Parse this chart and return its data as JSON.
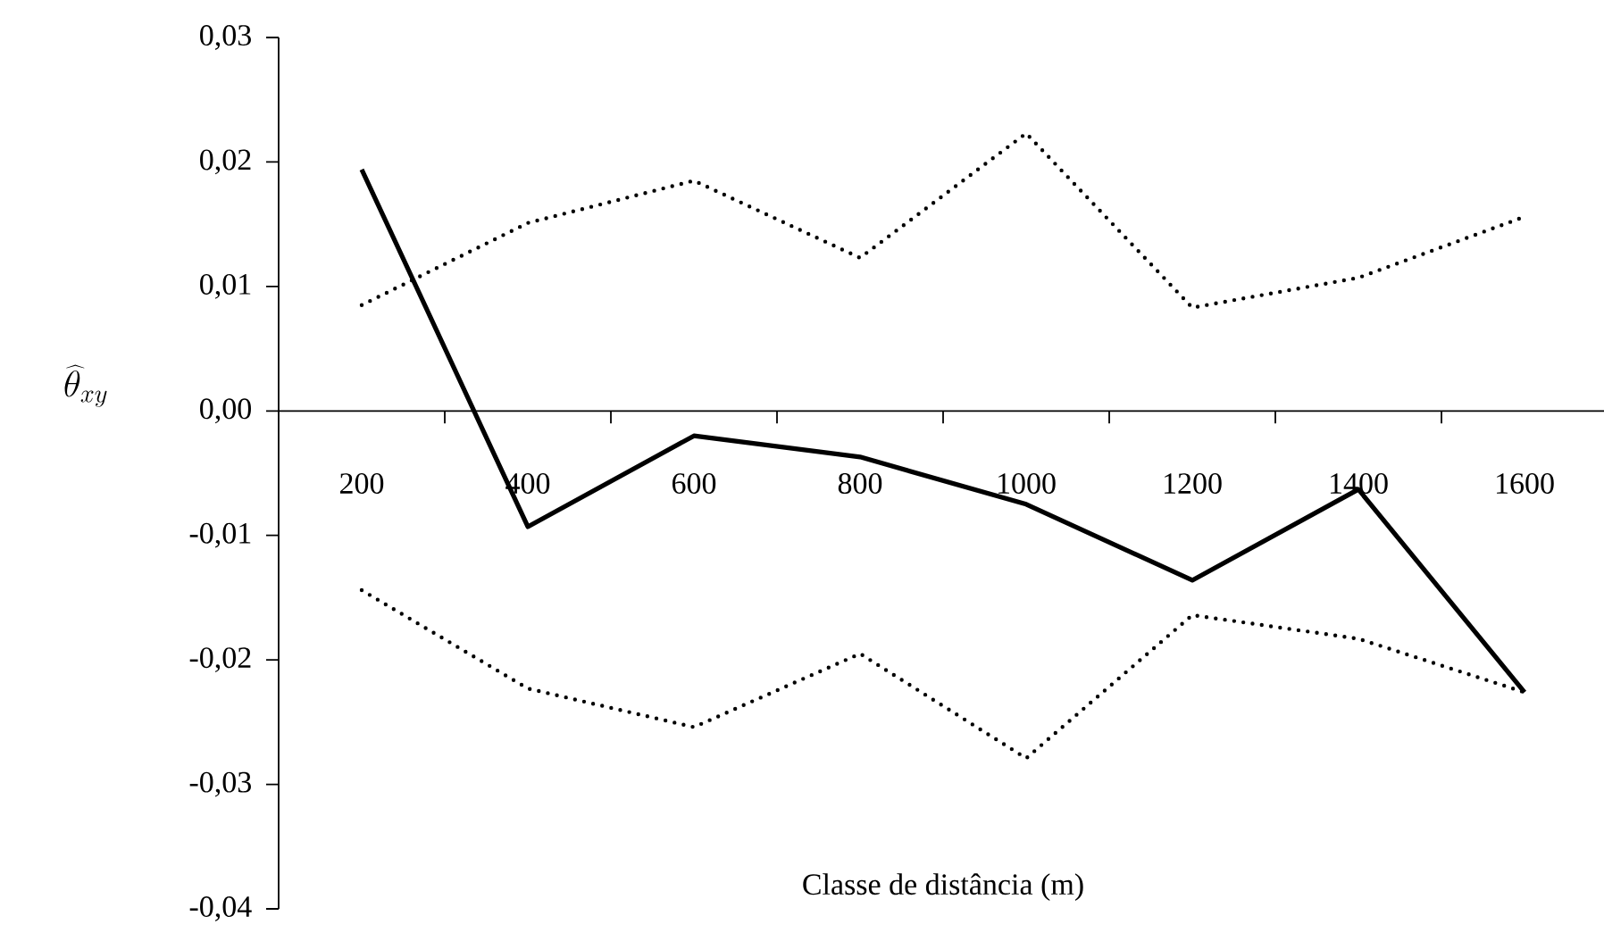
{
  "chart_data": {
    "type": "line",
    "ylabel": "\\widehat{\\theta}_{xy}",
    "xlabel": "Classe de distância (m)",
    "categories": [
      "200",
      "400",
      "600",
      "800",
      "1000",
      "1200",
      "1400",
      "1600"
    ],
    "ylim": [
      -0.04,
      0.03
    ],
    "yticks": [
      {
        "value": -0.04,
        "label": "-0,04"
      },
      {
        "value": -0.03,
        "label": "-0,03"
      },
      {
        "value": -0.02,
        "label": "-0,02"
      },
      {
        "value": -0.01,
        "label": "-0,01"
      },
      {
        "value": 0,
        "label": "0,00"
      },
      {
        "value": 0.01,
        "label": "0,01"
      },
      {
        "value": 0.02,
        "label": "0,02"
      },
      {
        "value": 0.03,
        "label": "0,03"
      }
    ],
    "marker": "none",
    "series": [
      {
        "color": "#000000",
        "line_style": "solid",
        "values": [
          0.0194,
          -0.0093,
          -0.002,
          -0.0037,
          -0.0075,
          -0.0136,
          -0.0063,
          -0.0226
        ]
      },
      {
        "color": "#000000",
        "line_style": "dotted",
        "values": [
          0.0085,
          0.0151,
          0.0185,
          0.0123,
          0.0223,
          0.0083,
          0.0107,
          0.0156
        ]
      },
      {
        "color": "#000000",
        "line_style": "dotted",
        "values": [
          -0.0144,
          -0.0223,
          -0.0254,
          -0.0195,
          -0.0279,
          -0.0164,
          -0.0183,
          -0.0226
        ]
      }
    ]
  }
}
